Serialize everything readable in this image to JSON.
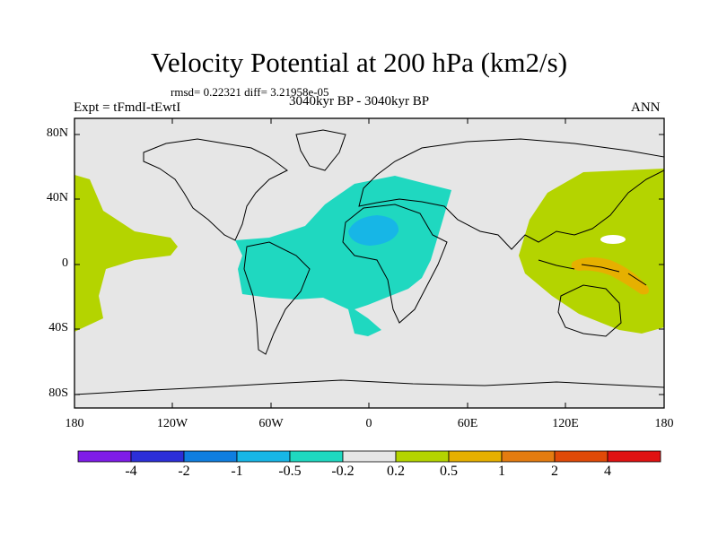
{
  "header": {
    "title": "Velocity Potential at 200 hPa (km2/s)",
    "stats": "rmsd= 0.22321 diff= 3.21958e-05",
    "experiment": "Expt = tFmdI-tEwtI",
    "period": "3040kyr BP - 3040kyr BP",
    "season": "ANN"
  },
  "axes": {
    "lat_labels": [
      "80N",
      "40N",
      "0",
      "40S",
      "80S"
    ],
    "lon_labels": [
      "180",
      "120W",
      "60W",
      "0",
      "60E",
      "120E",
      "180"
    ]
  },
  "colorbar": {
    "labels": [
      "-4",
      "-2",
      "-1",
      "-0.5",
      "-0.2",
      "0.2",
      "0.5",
      "1",
      "2",
      "4"
    ],
    "colors": [
      "#7f1ce8",
      "#2c2fd8",
      "#0f7ee0",
      "#17b6e6",
      "#1fd8c0",
      "#e6e6e6",
      "#b4d400",
      "#e6b000",
      "#e47c10",
      "#e04a08",
      "#e01212"
    ]
  },
  "map_colors": {
    "background": "#e6e6e6",
    "coast": "#000000"
  }
}
